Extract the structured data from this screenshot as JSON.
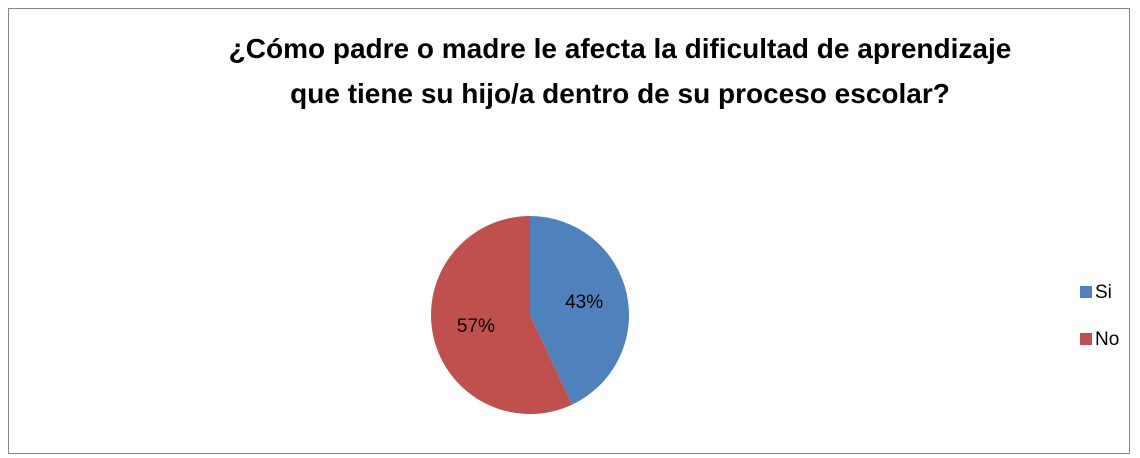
{
  "chart_data": {
    "type": "pie",
    "title": "¿Cómo padre o madre le afecta la dificultad de aprendizaje que tiene su hijo/a dentro de su proceso escolar?",
    "categories": [
      "Si",
      "No"
    ],
    "values": [
      43,
      57
    ],
    "value_labels": [
      "43%",
      "57%"
    ],
    "colors": [
      "#4f81bd",
      "#c0504d"
    ],
    "legend": "right"
  }
}
